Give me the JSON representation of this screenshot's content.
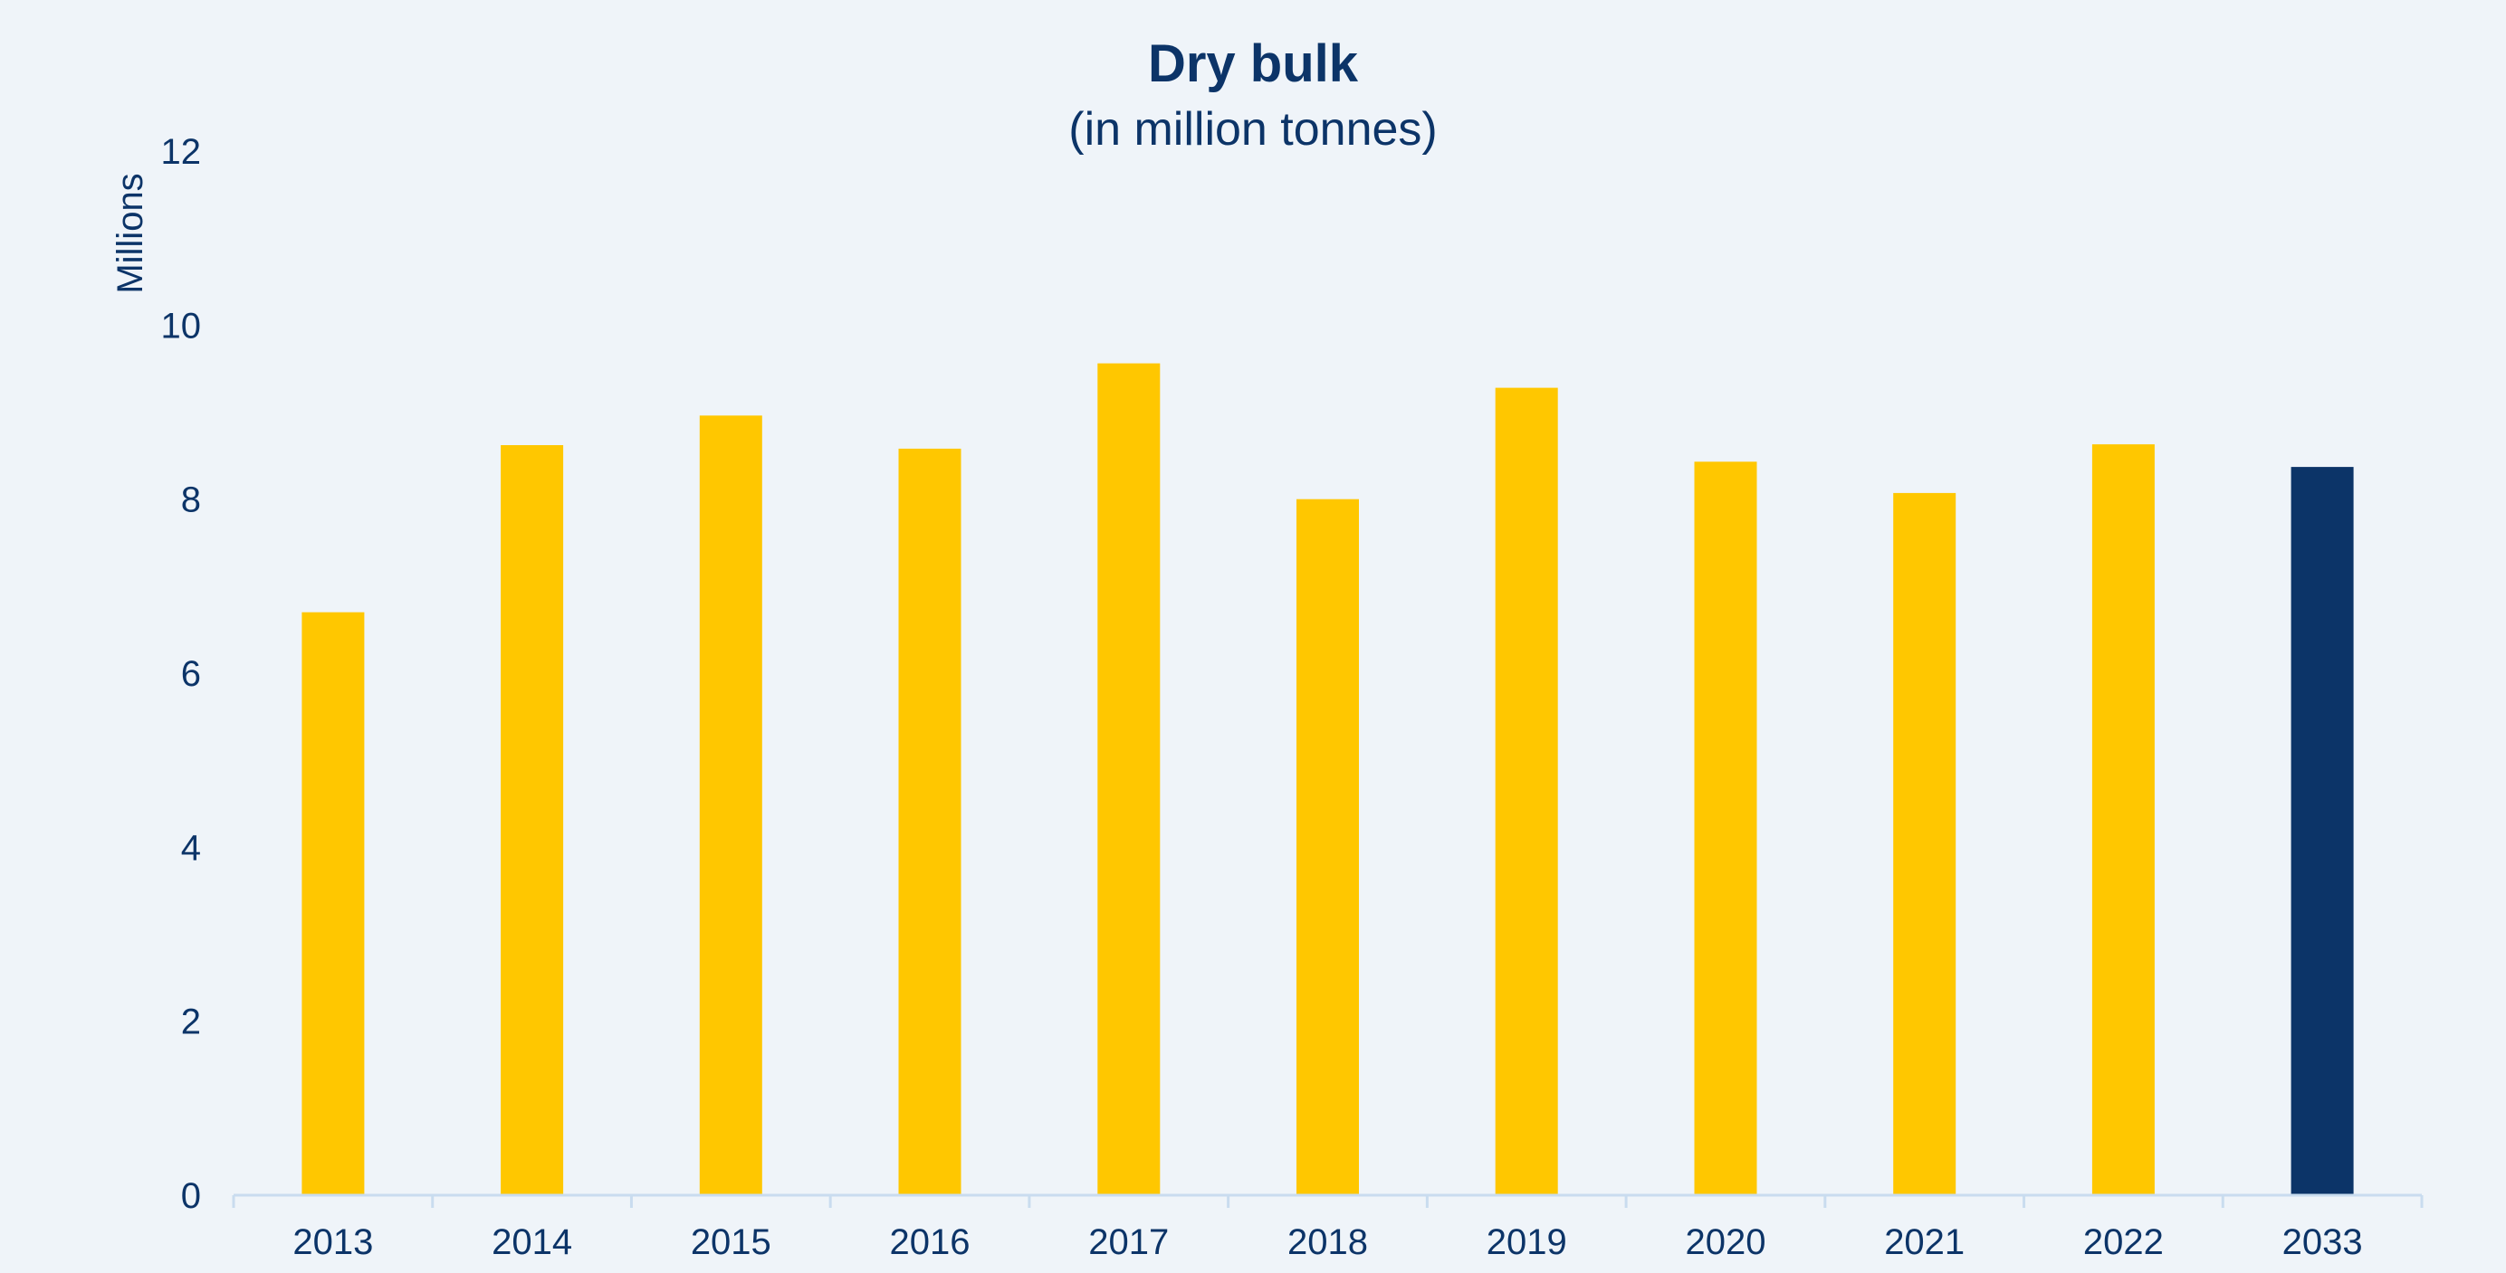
{
  "chart_data": {
    "type": "bar",
    "title": "Dry bulk",
    "subtitle": "(in million tonnes)",
    "ylabel": "Millions",
    "xlabel": "",
    "categories": [
      "2013",
      "2014",
      "2015",
      "2016",
      "2017",
      "2018",
      "2019",
      "2020",
      "2021",
      "2022",
      "2033"
    ],
    "values": [
      6.7,
      8.62,
      8.96,
      8.58,
      9.56,
      8.0,
      9.28,
      8.43,
      8.07,
      8.63,
      8.37
    ],
    "ylim": [
      0,
      12
    ],
    "yticks": [
      "0",
      "2",
      "4",
      "6",
      "8",
      "10",
      "12"
    ],
    "ytick_values": [
      0,
      2,
      4,
      6,
      8,
      10,
      12
    ],
    "grid": false,
    "legend": "none",
    "colors": {
      "bar": "#ffc700",
      "highlight_bar": "#0c3468",
      "highlight_category": "2033",
      "axis": "#c9dcef",
      "text": "#0c3468",
      "background": "#eff4f9"
    }
  }
}
